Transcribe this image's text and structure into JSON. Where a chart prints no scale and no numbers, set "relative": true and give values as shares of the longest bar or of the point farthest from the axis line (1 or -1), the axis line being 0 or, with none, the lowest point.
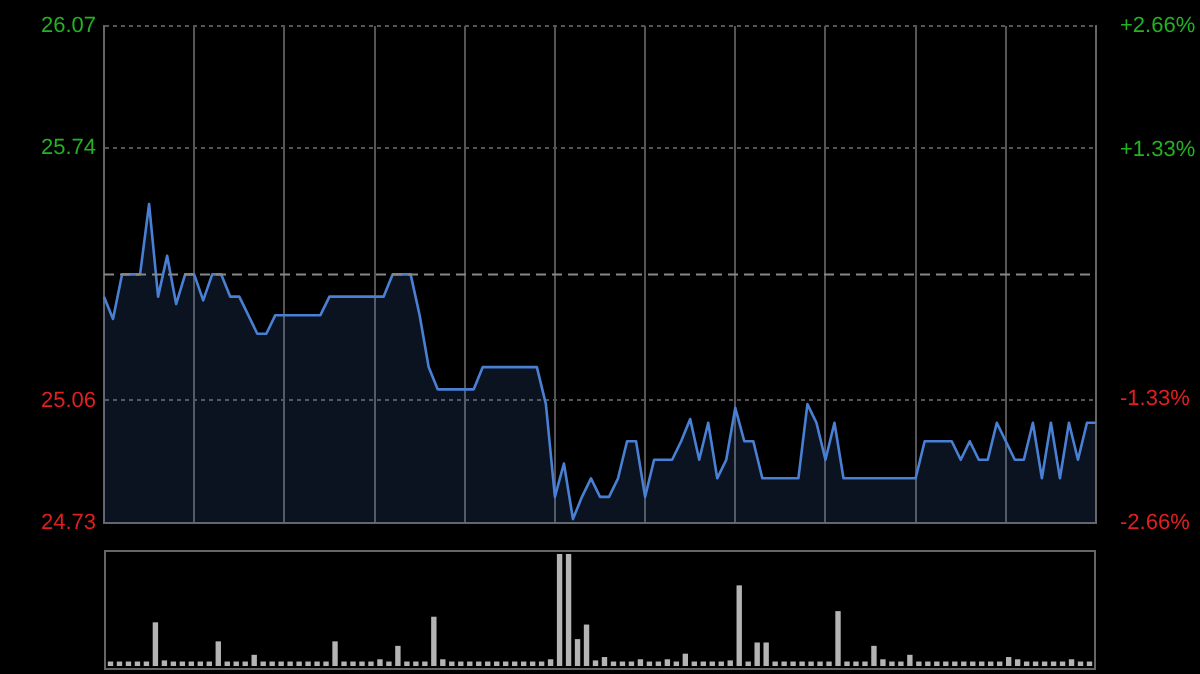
{
  "chart_data": [
    {
      "type": "area",
      "categories": [
        null,
        null,
        null,
        null,
        null,
        null,
        null,
        null,
        null,
        null,
        null,
        null,
        null,
        null,
        null,
        null,
        null,
        null,
        null,
        null,
        null,
        null,
        null,
        null,
        null,
        null,
        null,
        null,
        null,
        null,
        null,
        null,
        null,
        null,
        null,
        null,
        null,
        null,
        null,
        null,
        null,
        null,
        null,
        null,
        null,
        null,
        null,
        null,
        null,
        null,
        null,
        null,
        null,
        null,
        null,
        null,
        null,
        null,
        null,
        null,
        null,
        null,
        null,
        null,
        null,
        null,
        null,
        null,
        null,
        null,
        null,
        null,
        null,
        null,
        null,
        null,
        null,
        null,
        null,
        null,
        null,
        null,
        null,
        null,
        null,
        null,
        null,
        null,
        null,
        null,
        null,
        null,
        null,
        null,
        null,
        null,
        null,
        null,
        null,
        null,
        null,
        null,
        null,
        null,
        null,
        null,
        null,
        null,
        null,
        null,
        null
      ],
      "series": [
        {
          "color": "#4a80d4",
          "values": [
            25.34,
            25.28,
            25.4,
            25.4,
            25.4,
            25.59,
            25.34,
            25.45,
            25.32,
            25.4,
            25.4,
            25.33,
            25.4,
            25.4,
            25.34,
            25.34,
            25.29,
            25.24,
            25.24,
            25.29,
            25.29,
            25.29,
            25.29,
            25.29,
            25.29,
            25.34,
            25.34,
            25.34,
            25.34,
            25.34,
            25.34,
            25.34,
            25.4,
            25.4,
            25.4,
            25.29,
            25.15,
            25.09,
            25.09,
            25.09,
            25.09,
            25.09,
            25.15,
            25.15,
            25.15,
            25.15,
            25.15,
            25.15,
            25.15,
            25.05,
            24.8,
            24.89,
            24.74,
            24.8,
            24.85,
            24.8,
            24.8,
            24.85,
            24.95,
            24.95,
            24.8,
            24.9,
            24.9,
            24.9,
            24.95,
            25.01,
            24.9,
            25.0,
            24.85,
            24.9,
            25.04,
            24.95,
            24.95,
            24.85,
            24.85,
            24.85,
            24.85,
            24.85,
            25.05,
            25.0,
            24.9,
            25.0,
            24.85,
            24.85,
            24.85,
            24.85,
            24.85,
            24.85,
            24.85,
            24.85,
            24.85,
            24.95,
            24.95,
            24.95,
            24.95,
            24.9,
            24.95,
            24.9,
            24.9,
            25.0,
            24.95,
            24.9,
            24.9,
            25.0,
            24.85,
            25.0,
            24.85,
            25.0,
            24.9,
            25.0,
            25.0
          ]
        }
      ],
      "ylim": [
        24.73,
        26.07
      ],
      "yticks": [
        24.73,
        25.06,
        25.74,
        26.07
      ],
      "y2lim": [
        -2.66,
        2.66
      ],
      "y2ticks": [
        {
          "value": -2.66,
          "label": "-2.66%"
        },
        {
          "value": -1.33,
          "label": "-1.33%"
        },
        {
          "value": 1.33,
          "label": "+1.33%"
        },
        {
          "value": 2.66,
          "label": "+2.66%"
        }
      ],
      "ref_lines": [
        {
          "axis": "y",
          "value": 25.4,
          "color": "#888888",
          "line_style": "dashed"
        }
      ],
      "grid": true,
      "marker": "none",
      "legend": false
    },
    {
      "type": "bar",
      "relative": true,
      "categories": [
        null,
        null,
        null,
        null,
        null,
        null,
        null,
        null,
        null,
        null,
        null,
        null,
        null,
        null,
        null,
        null,
        null,
        null,
        null,
        null,
        null,
        null,
        null,
        null,
        null,
        null,
        null,
        null,
        null,
        null,
        null,
        null,
        null,
        null,
        null,
        null,
        null,
        null,
        null,
        null,
        null,
        null,
        null,
        null,
        null,
        null,
        null,
        null,
        null,
        null,
        null,
        null,
        null,
        null,
        null,
        null,
        null,
        null,
        null,
        null,
        null,
        null,
        null,
        null,
        null,
        null,
        null,
        null,
        null,
        null,
        null,
        null,
        null,
        null,
        null,
        null,
        null,
        null,
        null,
        null,
        null,
        null,
        null,
        null,
        null,
        null,
        null,
        null,
        null,
        null,
        null,
        null,
        null,
        null,
        null,
        null,
        null,
        null,
        null,
        null,
        null,
        null,
        null,
        null,
        null,
        null,
        null,
        null,
        null,
        null
      ],
      "series": [
        {
          "color": "#b4b4b4",
          "values": [
            0.04,
            0.04,
            0.04,
            0.04,
            0.04,
            0.39,
            0.05,
            0.04,
            0.04,
            0.04,
            0.04,
            0.04,
            0.22,
            0.04,
            0.04,
            0.04,
            0.1,
            0.04,
            0.04,
            0.04,
            0.04,
            0.04,
            0.04,
            0.04,
            0.04,
            0.22,
            0.04,
            0.04,
            0.04,
            0.04,
            0.06,
            0.04,
            0.18,
            0.04,
            0.04,
            0.04,
            0.44,
            0.06,
            0.04,
            0.04,
            0.04,
            0.04,
            0.04,
            0.04,
            0.04,
            0.04,
            0.04,
            0.04,
            0.04,
            0.06,
            1.0,
            1.0,
            0.24,
            0.37,
            0.05,
            0.08,
            0.04,
            0.04,
            0.04,
            0.06,
            0.04,
            0.04,
            0.06,
            0.04,
            0.11,
            0.04,
            0.04,
            0.04,
            0.04,
            0.05,
            0.72,
            0.04,
            0.21,
            0.21,
            0.04,
            0.04,
            0.04,
            0.04,
            0.04,
            0.04,
            0.04,
            0.49,
            0.04,
            0.04,
            0.04,
            0.18,
            0.06,
            0.04,
            0.04,
            0.1,
            0.04,
            0.04,
            0.04,
            0.04,
            0.04,
            0.04,
            0.04,
            0.04,
            0.04,
            0.04,
            0.08,
            0.06,
            0.04,
            0.04,
            0.04,
            0.04,
            0.04,
            0.06,
            0.04,
            0.04
          ]
        }
      ]
    }
  ]
}
